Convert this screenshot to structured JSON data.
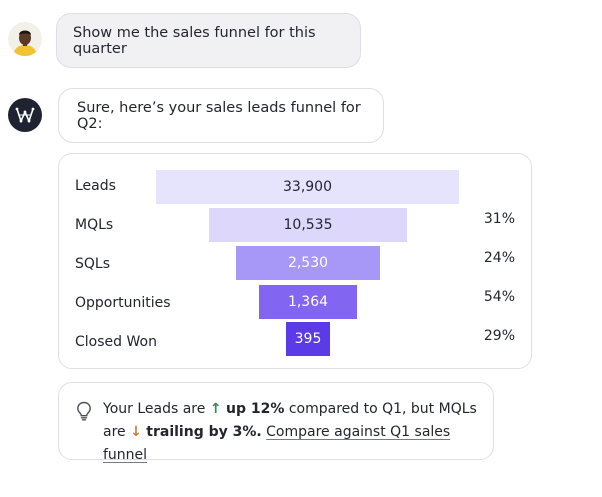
{
  "chat": {
    "user_message": "Show me the sales funnel for this quarter",
    "bot_message": "Sure, here’s your sales leads funnel for Q2:"
  },
  "colors": {
    "stage_1": "#e6e3fc",
    "stage_2": "#dcd7fb",
    "stage_3": "#a797f7",
    "stage_4": "#8266f1",
    "stage_5": "#5b3be7"
  },
  "funnel": {
    "stages": [
      {
        "label": "Leads",
        "value": "33,900",
        "conversion": ""
      },
      {
        "label": "MQLs",
        "value": "10,535",
        "conversion": "31%"
      },
      {
        "label": "SQLs",
        "value": "2,530",
        "conversion": "24%"
      },
      {
        "label": "Opportunities",
        "value": "1,364",
        "conversion": "54%"
      },
      {
        "label": "Closed Won",
        "value": "395",
        "conversion": "29%"
      }
    ]
  },
  "insight": {
    "icon": "lightbulb-icon",
    "part1": "Your Leads are",
    "up_arrow": "↑",
    "up_text": "up 12%",
    "part2": "compared to Q1, but MQLs are",
    "down_arrow": "↓",
    "down_text": "trailing by 3%.",
    "link_text": "Compare against Q1 sales funnel"
  }
}
